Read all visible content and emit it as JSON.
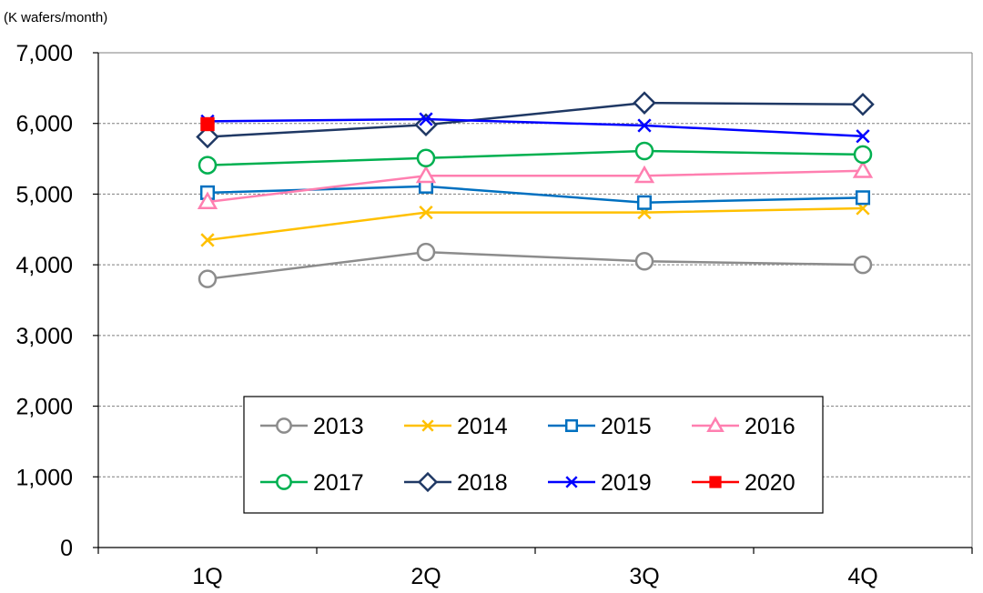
{
  "chart_data": {
    "type": "line",
    "unit_label": "(K wafers/month)",
    "categories": [
      "1Q",
      "2Q",
      "3Q",
      "4Q"
    ],
    "ylim": [
      0,
      7000
    ],
    "y_ticks": [
      0,
      1000,
      2000,
      3000,
      4000,
      5000,
      6000,
      7000
    ],
    "y_tick_labels": [
      "0",
      "1,000",
      "2,000",
      "3,000",
      "4,000",
      "5,000",
      "6,000",
      "7,000"
    ],
    "grid": true,
    "legend": "inside-bottom-center",
    "series": [
      {
        "name": "2013",
        "color": "#8c8c8c",
        "marker": "circle",
        "values": [
          3800,
          4180,
          4050,
          4000
        ]
      },
      {
        "name": "2014",
        "color": "#ffc000",
        "marker": "x",
        "values": [
          4350,
          4740,
          4740,
          4800
        ]
      },
      {
        "name": "2015",
        "color": "#0070c0",
        "marker": "square",
        "values": [
          5020,
          5110,
          4880,
          4950
        ]
      },
      {
        "name": "2016",
        "color": "#ff7fb0",
        "marker": "triangle",
        "values": [
          4890,
          5260,
          5260,
          5330
        ]
      },
      {
        "name": "2017",
        "color": "#00b050",
        "marker": "circle",
        "values": [
          5410,
          5510,
          5610,
          5560
        ]
      },
      {
        "name": "2018",
        "color": "#1f3864",
        "marker": "diamond",
        "values": [
          5810,
          5980,
          6290,
          6270
        ]
      },
      {
        "name": "2019",
        "color": "#0000ff",
        "marker": "x",
        "values": [
          6030,
          6060,
          5970,
          5820
        ]
      },
      {
        "name": "2020",
        "color": "#ff0000",
        "marker": "filled-square",
        "values": [
          5990,
          null,
          null,
          null
        ]
      }
    ]
  }
}
